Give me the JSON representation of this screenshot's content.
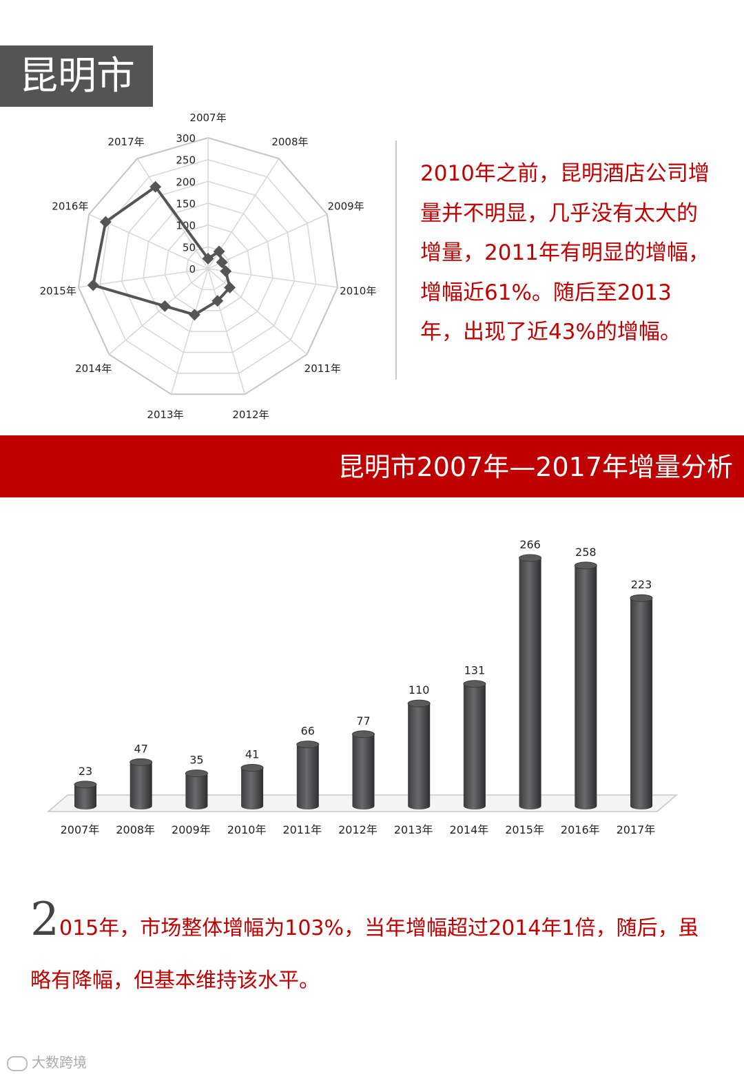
{
  "header": {
    "title": "昆明市"
  },
  "description": {
    "text": "2010年之前，昆明酒店公司增量并不明显，几乎没有太大的增量，2011年有明显的增幅，增幅近61%。随后至2013年，出现了近43%的增幅。"
  },
  "banner": {
    "title": "昆明市2007年—2017年增量分析"
  },
  "footer_text": {
    "dropcap": "2",
    "text": "015年，市场整体增幅为103%，当年增幅超过2014年1倍，随后，虽略有降幅，但基本维持该水平。"
  },
  "watermark": {
    "text": "大数跨境"
  },
  "colors": {
    "accent": "#c00000",
    "title_bg": "#545454",
    "bar": "#4d4d4f",
    "radar_line": "#555555"
  },
  "chart_data": [
    {
      "type": "radar",
      "categories": [
        "2007年",
        "2008年",
        "2009年",
        "2010年",
        "2011年",
        "2012年",
        "2013年",
        "2014年",
        "2015年",
        "2016年",
        "2017年"
      ],
      "values": [
        23,
        47,
        35,
        41,
        66,
        77,
        110,
        131,
        266,
        258,
        223
      ],
      "rlim": [
        0,
        300
      ],
      "r_ticks": [
        "0",
        "50",
        "100",
        "150",
        "200",
        "250",
        "300"
      ],
      "title": "",
      "grid": true
    },
    {
      "type": "bar",
      "categories": [
        "2007年",
        "2008年",
        "2009年",
        "2010年",
        "2011年",
        "2012年",
        "2013年",
        "2014年",
        "2015年",
        "2016年",
        "2017年"
      ],
      "values": [
        23,
        47,
        35,
        41,
        66,
        77,
        110,
        131,
        266,
        258,
        223
      ],
      "data_labels": [
        "23",
        "47",
        "35",
        "41",
        "66",
        "77",
        "110",
        "131",
        "266",
        "258",
        "223"
      ],
      "ylim": [
        0,
        266
      ],
      "title": "",
      "xlabel": "",
      "ylabel": "",
      "grid": false
    }
  ]
}
